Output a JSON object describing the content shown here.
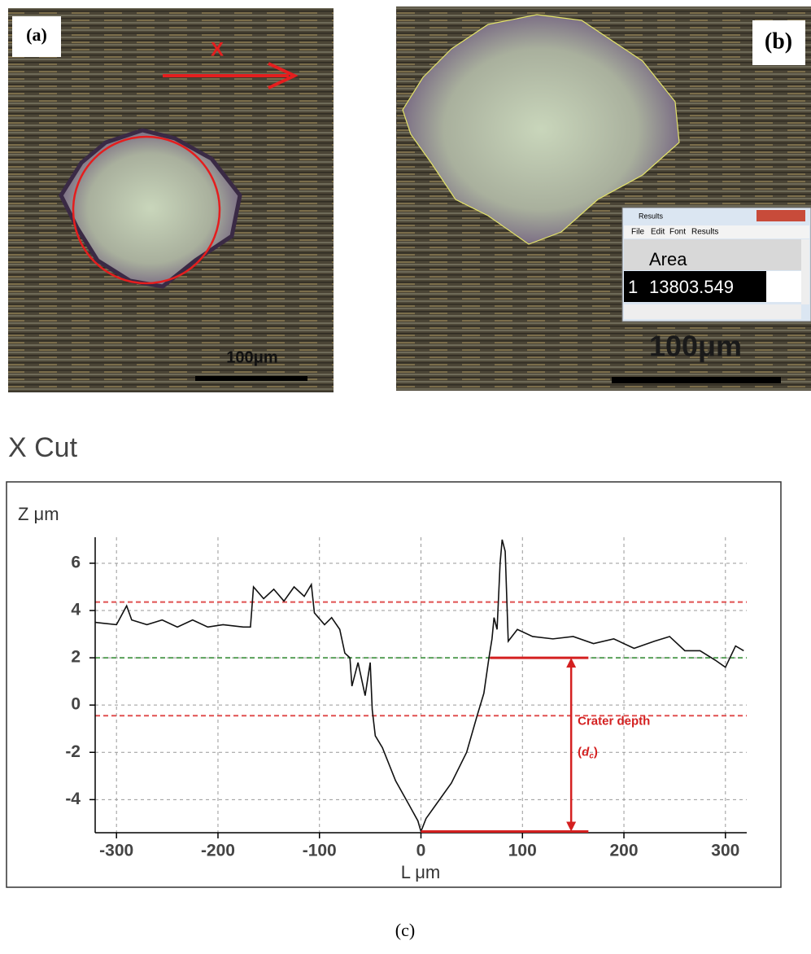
{
  "panels": {
    "a": {
      "label": "(a)",
      "direction": "X",
      "scale_bar": "100μm"
    },
    "b": {
      "label": "(b)",
      "scale_bar": "100μm",
      "results_window": {
        "title": "Results",
        "menu": [
          "File",
          "Edit",
          "Font",
          "Results"
        ],
        "header": "Area",
        "rows": [
          [
            "1",
            "13803.549"
          ]
        ]
      }
    }
  },
  "caption": "(c)",
  "chart_data": {
    "type": "line",
    "title": "X Cut",
    "y_label": "Z μm",
    "x_label": "L μm",
    "x": [
      -321,
      -300,
      -290,
      -285,
      -270,
      -255,
      -240,
      -225,
      -210,
      -195,
      -175,
      -168,
      -165,
      -155,
      -145,
      -135,
      -125,
      -115,
      -108,
      -105,
      -95,
      -88,
      -80,
      -75,
      -70,
      -68,
      -62,
      -55,
      -50,
      -48,
      -45,
      -38,
      -25,
      -12,
      -3,
      0,
      5,
      15,
      30,
      45,
      55,
      62,
      67,
      70,
      72,
      75,
      78,
      80,
      83,
      86,
      95,
      110,
      130,
      150,
      170,
      190,
      210,
      230,
      245,
      260,
      275,
      290,
      300,
      310,
      318
    ],
    "series": [
      {
        "color": "#111111",
        "values": [
          3.5,
          3.4,
          4.2,
          3.6,
          3.4,
          3.6,
          3.3,
          3.6,
          3.3,
          3.4,
          3.3,
          3.3,
          5.0,
          4.5,
          4.9,
          4.4,
          5.0,
          4.6,
          5.1,
          3.9,
          3.4,
          3.7,
          3.2,
          2.2,
          2.0,
          0.8,
          1.8,
          0.4,
          1.8,
          -0.2,
          -1.3,
          -1.8,
          -3.2,
          -4.2,
          -4.9,
          -5.35,
          -4.8,
          -4.2,
          -3.3,
          -2.0,
          -0.5,
          0.5,
          2.0,
          2.8,
          3.7,
          3.2,
          6.0,
          7.0,
          6.5,
          2.7,
          3.2,
          2.9,
          2.8,
          2.9,
          2.6,
          2.8,
          2.4,
          2.7,
          2.9,
          2.3,
          2.3,
          1.9,
          1.6,
          2.5,
          2.3
        ]
      }
    ],
    "xlim": [
      -321,
      321
    ],
    "ylim": [
      -5.4,
      7.1
    ],
    "xticks": [
      -300,
      -200,
      -100,
      0,
      100,
      200,
      300
    ],
    "yticks": [
      -4,
      -2,
      0,
      2,
      4,
      6
    ],
    "grid": true,
    "reference_lines": [
      {
        "value": 4.36,
        "color": "#e05050"
      },
      {
        "value": 2.0,
        "color": "#5aa05a"
      },
      {
        "value": -0.45,
        "color": "#e05050"
      }
    ],
    "depth": {
      "top": 2.0,
      "bottom": -5.35,
      "x": 148,
      "start": 68,
      "end": 165,
      "color": "#d42020"
    },
    "annotation": {
      "title": "Crater depth",
      "open": "(",
      "symbol": "d",
      "subscript": "c",
      "close": ")"
    }
  }
}
